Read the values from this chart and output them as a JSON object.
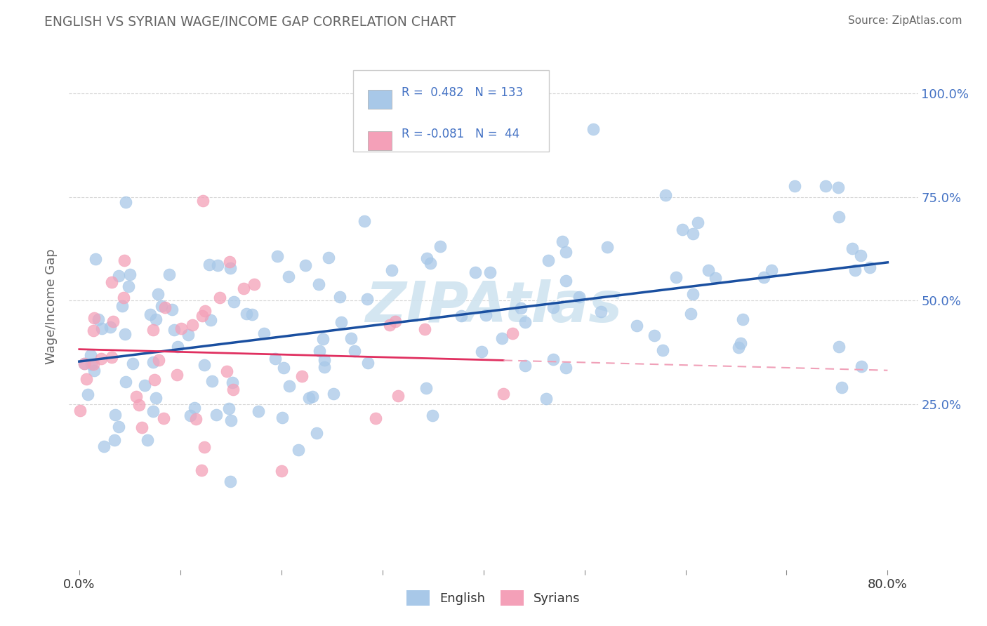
{
  "title": "ENGLISH VS SYRIAN WAGE/INCOME GAP CORRELATION CHART",
  "source": "Source: ZipAtlas.com",
  "ylabel": "Wage/Income Gap",
  "blue_R": 0.482,
  "blue_N": 133,
  "pink_R": -0.081,
  "pink_N": 44,
  "blue_color": "#a8c8e8",
  "pink_color": "#f4a0b8",
  "blue_line_color": "#1a4fa0",
  "pink_line_color": "#e03060",
  "pink_dash_color": "#f0a0b8",
  "background_color": "#ffffff",
  "legend_label_english": "English",
  "legend_label_syrians": "Syrians",
  "watermark_color": "#d0e4f0",
  "grid_color": "#cccccc",
  "title_color": "#666666",
  "tick_color": "#4472c4",
  "ylabel_color": "#666666"
}
